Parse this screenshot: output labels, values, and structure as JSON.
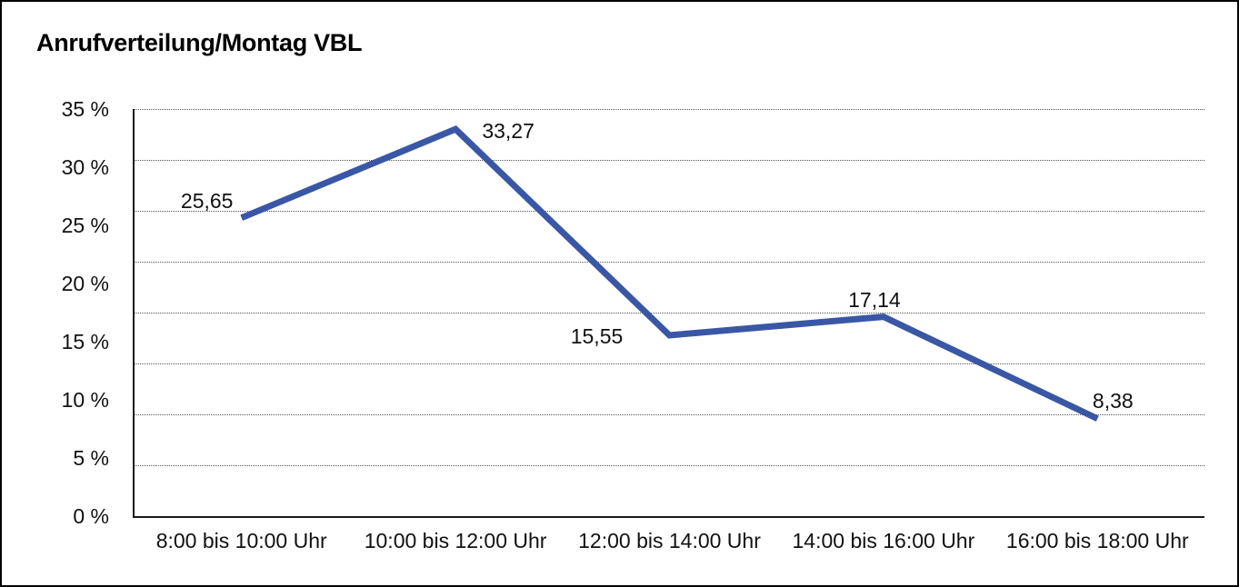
{
  "chart_data": {
    "type": "line",
    "title": "Anrufverteilung/Montag VBL",
    "categories": [
      "8:00 bis 10:00 Uhr",
      "10:00 bis 12:00 Uhr",
      "12:00 bis 14:00 Uhr",
      "14:00 bis 16:00 Uhr",
      "16:00 bis 18:00 Uhr"
    ],
    "values": [
      25.65,
      33.27,
      15.55,
      17.14,
      8.38
    ],
    "value_labels": [
      "25,65",
      "33,27",
      "15,55",
      "17,14",
      "8,38"
    ],
    "y_tick_labels": [
      "35 %",
      "30 %",
      "25 %",
      "20 %",
      "15 %",
      "10 %",
      "5 %",
      "0 %"
    ],
    "ylim": [
      0,
      35
    ],
    "xlabel": "",
    "ylabel": "",
    "legend": "none",
    "grid": "horizontal dotted, 8 intervals",
    "gridline_intervals": 8,
    "line_color": "#3A57A6",
    "line_width": 7,
    "axis_color": "#1A1A1A",
    "background_color": "#FFFFFF",
    "border_color": "#000000",
    "decimal_separator": ","
  }
}
